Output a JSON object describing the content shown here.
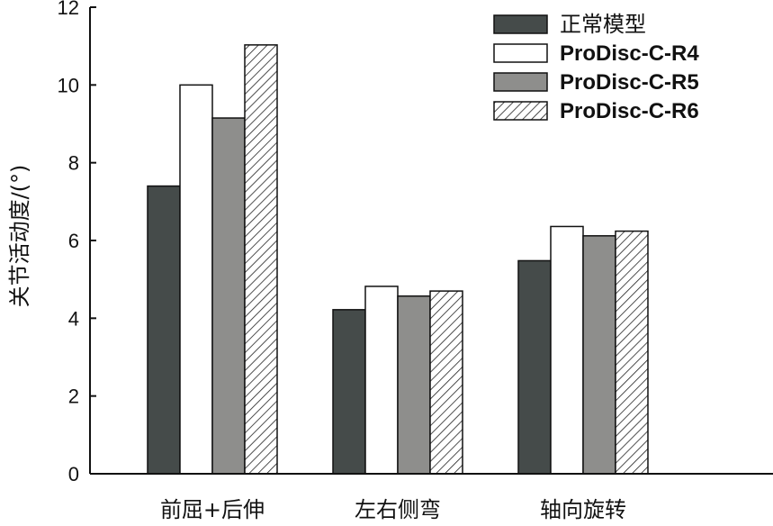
{
  "chart_data": {
    "type": "bar",
    "title": "",
    "xlabel": "",
    "ylabel": "关节活动度/(°)",
    "ylim": [
      0,
      12
    ],
    "yticks": [
      0,
      2,
      4,
      6,
      8,
      10,
      12
    ],
    "grid": false,
    "legend_position": "top-right",
    "categories": [
      "前屈+后伸",
      "左右侧弯",
      "轴向旋转"
    ],
    "series": [
      {
        "name": "正常模型",
        "values": [
          7.4,
          4.22,
          5.48
        ],
        "color": "#454b4a",
        "fill": "solid"
      },
      {
        "name": "ProDisc-C-R4",
        "values": [
          10.0,
          4.82,
          6.36
        ],
        "color": "#ffffff",
        "fill": "solid"
      },
      {
        "name": "ProDisc-C-R5",
        "values": [
          9.15,
          4.57,
          6.12
        ],
        "color": "#8e8e8c",
        "fill": "solid"
      },
      {
        "name": "ProDisc-C-R6",
        "values": [
          11.03,
          4.7,
          6.24
        ],
        "color": "#ffffff",
        "fill": "hatch"
      }
    ]
  }
}
